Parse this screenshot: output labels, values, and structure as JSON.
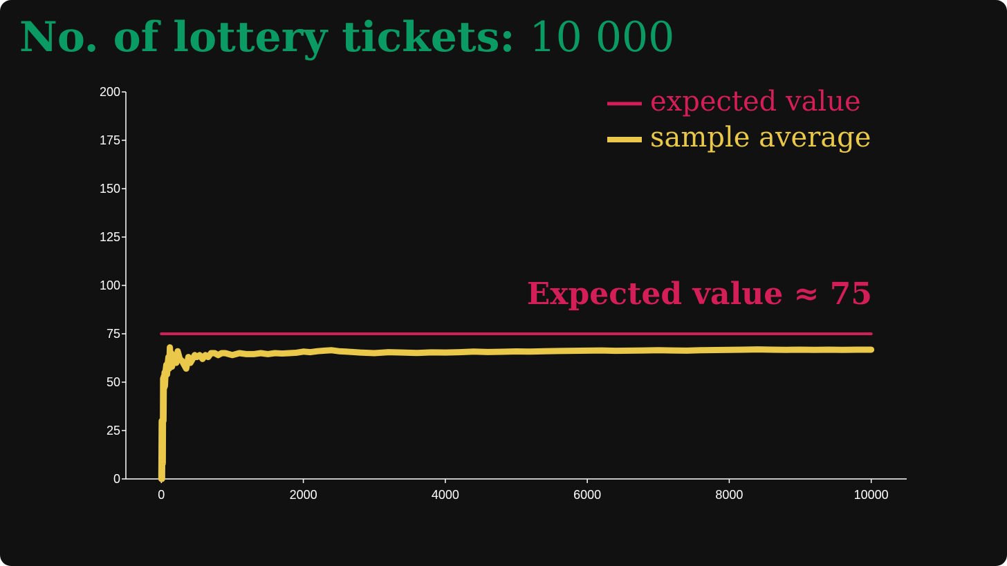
{
  "header": {
    "label": "No. of lottery tickets:",
    "value": "10 000"
  },
  "colors": {
    "background": "#111111",
    "title": "#0a9a63",
    "expected": "#d41e58",
    "sample": "#e9c84a",
    "axis": "#ffffff"
  },
  "chart_data": {
    "type": "line",
    "title": "",
    "xlabel": "",
    "ylabel": "",
    "xlim": [
      -500,
      10500
    ],
    "ylim": [
      0,
      200
    ],
    "xticks": [
      "0",
      "2000",
      "4000",
      "6000",
      "8000",
      "10000"
    ],
    "yticks": [
      "0",
      "25",
      "50",
      "75",
      "100",
      "125",
      "150",
      "175",
      "200"
    ],
    "legend_position": "top-right",
    "grid": false,
    "annotation": "Expected value ≈ 75",
    "series": [
      {
        "name": "expected value",
        "color": "#d41e58",
        "x": [
          0,
          10000
        ],
        "y": [
          75,
          75
        ]
      },
      {
        "name": "sample average",
        "color": "#e9c84a",
        "x": [
          0,
          5,
          10,
          15,
          20,
          25,
          30,
          35,
          40,
          45,
          50,
          60,
          70,
          80,
          90,
          100,
          110,
          120,
          130,
          140,
          150,
          170,
          190,
          210,
          230,
          260,
          290,
          320,
          350,
          380,
          410,
          440,
          470,
          500,
          540,
          580,
          620,
          660,
          700,
          750,
          800,
          850,
          900,
          1000,
          1100,
          1200,
          1300,
          1400,
          1500,
          1600,
          1700,
          1800,
          1900,
          2000,
          2100,
          2200,
          2300,
          2400,
          2500,
          2600,
          2800,
          3000,
          3200,
          3400,
          3600,
          3800,
          4000,
          4200,
          4400,
          4600,
          4800,
          5000,
          5200,
          5400,
          5600,
          5800,
          6000,
          6200,
          6400,
          6600,
          6800,
          7000,
          7200,
          7400,
          7600,
          7800,
          8000,
          8200,
          8400,
          8600,
          8800,
          9000,
          9200,
          9400,
          9600,
          9800,
          10000
        ],
        "y": [
          0,
          30,
          0,
          28,
          8,
          52,
          30,
          53,
          47,
          55,
          48,
          56,
          59,
          54,
          60,
          63,
          57,
          68,
          60,
          65,
          58,
          64,
          62,
          60,
          66,
          62,
          61,
          59,
          57,
          63,
          60,
          62,
          64,
          63,
          64,
          62,
          64,
          63,
          65,
          65,
          64,
          65,
          65,
          64,
          65,
          64.5,
          64.5,
          65,
          64.5,
          65,
          64.8,
          65,
          65.2,
          65.8,
          65.5,
          66,
          66.3,
          66.5,
          66,
          65.8,
          65.3,
          65,
          65.5,
          65.3,
          65.1,
          65.4,
          65.3,
          65.5,
          65.8,
          65.6,
          65.7,
          65.9,
          65.8,
          66,
          66.1,
          66.2,
          66.3,
          66.4,
          66.2,
          66.3,
          66.4,
          66.5,
          66.4,
          66.3,
          66.5,
          66.6,
          66.7,
          66.8,
          66.9,
          66.8,
          66.7,
          66.8,
          66.7,
          66.8,
          66.7,
          66.8,
          66.8
        ]
      }
    ]
  }
}
